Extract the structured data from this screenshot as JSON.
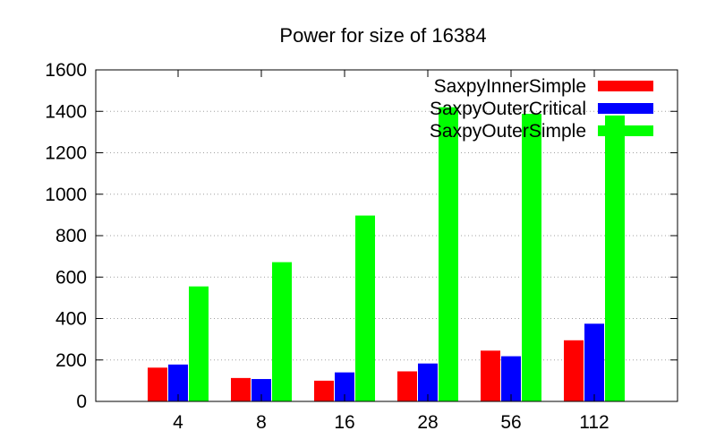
{
  "chart_data": {
    "type": "bar",
    "title": "Power for size of 16384",
    "xlabel": "",
    "ylabel": "",
    "categories": [
      "4",
      "8",
      "16",
      "28",
      "56",
      "112"
    ],
    "ylim": [
      0,
      1600
    ],
    "yticks": [
      "0",
      "200",
      "400",
      "600",
      "800",
      "1000",
      "1200",
      "1400",
      "1600"
    ],
    "grid": "horizontal-dotted",
    "legend_position": "top-right",
    "series": [
      {
        "name": "SaxpyInnerSimple",
        "color": "#ff0000",
        "values": [
          163,
          113,
          100,
          145,
          245,
          295
        ]
      },
      {
        "name": "SaxpyOuterCritical",
        "color": "#0000ff",
        "values": [
          178,
          108,
          140,
          183,
          218,
          375
        ]
      },
      {
        "name": "SaxpyOuterSimple",
        "color": "#00ff00",
        "values": [
          555,
          672,
          897,
          1420,
          1388,
          1380
        ]
      }
    ]
  }
}
